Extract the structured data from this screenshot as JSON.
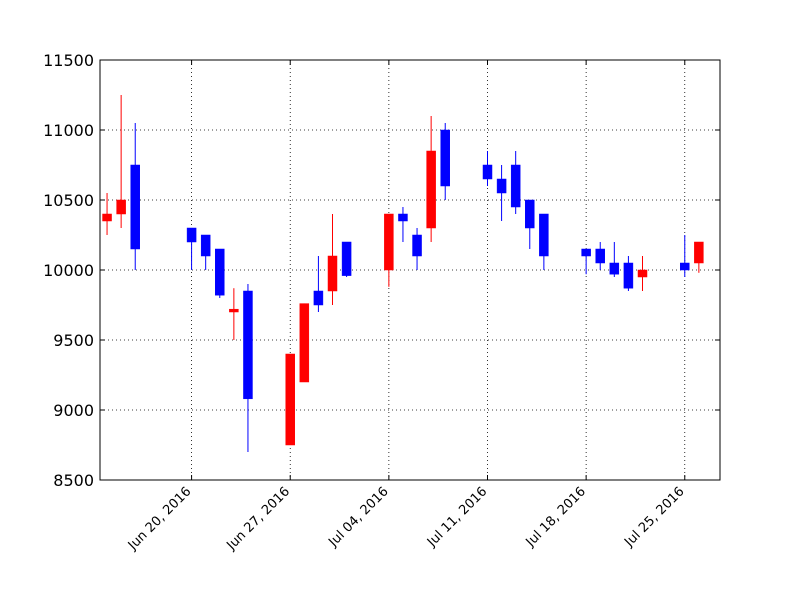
{
  "chart_data": {
    "type": "candlestick",
    "title": "",
    "xlabel": "",
    "ylabel": "",
    "ylim": [
      8500,
      11500
    ],
    "xlim": [
      "2016-06-14",
      "2016-07-27"
    ],
    "grid": true,
    "grid_style": "dotted",
    "colors": {
      "up": "#ff0000",
      "down": "#0000ff"
    },
    "yticks": [
      8500,
      9000,
      9500,
      10000,
      10500,
      11000,
      11500
    ],
    "xticks": [
      {
        "date": "2016-06-20",
        "label": "Jun 20, 2016"
      },
      {
        "date": "2016-06-27",
        "label": "Jun 27, 2016"
      },
      {
        "date": "2016-07-04",
        "label": "Jul 04, 2016"
      },
      {
        "date": "2016-07-11",
        "label": "Jul 11, 2016"
      },
      {
        "date": "2016-07-18",
        "label": "Jul 18, 2016"
      },
      {
        "date": "2016-07-25",
        "label": "Jul 25, 2016"
      }
    ],
    "candles": [
      {
        "date": "2016-06-14",
        "open": 10350,
        "close": 10400,
        "high": 10550,
        "low": 10250
      },
      {
        "date": "2016-06-15",
        "open": 10400,
        "close": 10500,
        "high": 11250,
        "low": 10300
      },
      {
        "date": "2016-06-16",
        "open": 10750,
        "close": 10150,
        "high": 11050,
        "low": 10000
      },
      {
        "date": "2016-06-20",
        "open": 10300,
        "close": 10200,
        "high": 10300,
        "low": 10000
      },
      {
        "date": "2016-06-21",
        "open": 10250,
        "close": 10100,
        "high": 10250,
        "low": 10000
      },
      {
        "date": "2016-06-22",
        "open": 10150,
        "close": 9820,
        "high": 10150,
        "low": 9800
      },
      {
        "date": "2016-06-23",
        "open": 9700,
        "close": 9720,
        "high": 9870,
        "low": 9500
      },
      {
        "date": "2016-06-24",
        "open": 9850,
        "close": 9080,
        "high": 9900,
        "low": 8700
      },
      {
        "date": "2016-06-27",
        "open": 8750,
        "close": 9400,
        "high": 9400,
        "low": 8750
      },
      {
        "date": "2016-06-28",
        "open": 9200,
        "close": 9760,
        "high": 9760,
        "low": 9200
      },
      {
        "date": "2016-06-29",
        "open": 9850,
        "close": 9750,
        "high": 10100,
        "low": 9700
      },
      {
        "date": "2016-06-30",
        "open": 9850,
        "close": 10100,
        "high": 10400,
        "low": 9750
      },
      {
        "date": "2016-07-01",
        "open": 10200,
        "close": 9960,
        "high": 10200,
        "low": 9950
      },
      {
        "date": "2016-07-04",
        "open": 10000,
        "close": 10400,
        "high": 10400,
        "low": 9880
      },
      {
        "date": "2016-07-05",
        "open": 10400,
        "close": 10350,
        "high": 10450,
        "low": 10200
      },
      {
        "date": "2016-07-06",
        "open": 10250,
        "close": 10100,
        "high": 10300,
        "low": 10000
      },
      {
        "date": "2016-07-07",
        "open": 10300,
        "close": 10850,
        "high": 11100,
        "low": 10200
      },
      {
        "date": "2016-07-08",
        "open": 11000,
        "close": 10600,
        "high": 11050,
        "low": 10500
      },
      {
        "date": "2016-07-11",
        "open": 10750,
        "close": 10650,
        "high": 10850,
        "low": 10600
      },
      {
        "date": "2016-07-12",
        "open": 10650,
        "close": 10550,
        "high": 10750,
        "low": 10350
      },
      {
        "date": "2016-07-13",
        "open": 10750,
        "close": 10450,
        "high": 10850,
        "low": 10400
      },
      {
        "date": "2016-07-14",
        "open": 10500,
        "close": 10300,
        "high": 10500,
        "low": 10150
      },
      {
        "date": "2016-07-15",
        "open": 10400,
        "close": 10100,
        "high": 10400,
        "low": 10000
      },
      {
        "date": "2016-07-18",
        "open": 10150,
        "close": 10100,
        "high": 10150,
        "low": 9970
      },
      {
        "date": "2016-07-19",
        "open": 10150,
        "close": 10050,
        "high": 10200,
        "low": 10000
      },
      {
        "date": "2016-07-20",
        "open": 10050,
        "close": 9970,
        "high": 10200,
        "low": 9950
      },
      {
        "date": "2016-07-21",
        "open": 10050,
        "close": 9870,
        "high": 10100,
        "low": 9850
      },
      {
        "date": "2016-07-22",
        "open": 9950,
        "close": 10000,
        "high": 10100,
        "low": 9850
      },
      {
        "date": "2016-07-25",
        "open": 10050,
        "close": 10000,
        "high": 10250,
        "low": 9950
      },
      {
        "date": "2016-07-26",
        "open": 10050,
        "close": 10200,
        "high": 10200,
        "low": 9980
      }
    ]
  }
}
